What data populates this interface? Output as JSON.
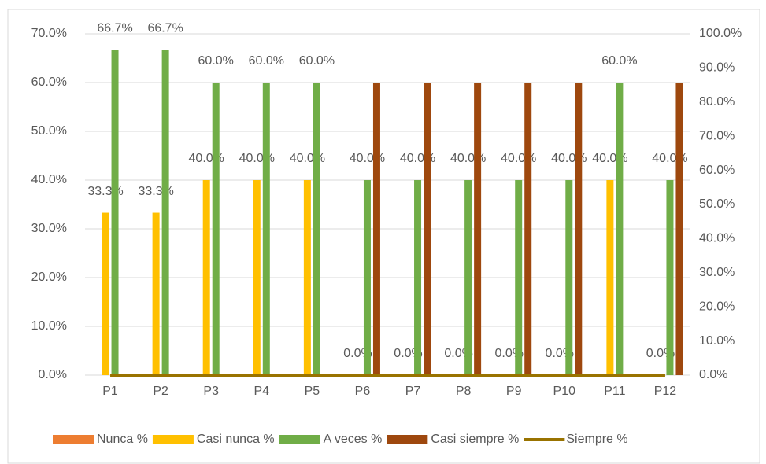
{
  "chart_data": {
    "type": "bar",
    "categories": [
      "P1",
      "P2",
      "P3",
      "P4",
      "P5",
      "P6",
      "P7",
      "P8",
      "P9",
      "P10",
      "P11",
      "P12"
    ],
    "series": [
      {
        "name": "Nunca %",
        "color": "#ED7D31",
        "values": [
          0,
          0,
          0,
          0,
          0,
          0,
          0,
          0,
          0,
          0,
          0,
          0
        ]
      },
      {
        "name": "Casi nunca %",
        "color": "#FFC000",
        "values": [
          33.3,
          33.3,
          40,
          40,
          40,
          0,
          0,
          0,
          0,
          0,
          40,
          0
        ],
        "value_labels": [
          "33.3%",
          "33.3%",
          "40.0%",
          "40.0%",
          "40.0%",
          "0.0%",
          "0.0%",
          "0.0%",
          "0.0%",
          "0.0%",
          "40.0%",
          "0.0%"
        ]
      },
      {
        "name": "A veces %",
        "color": "#70AD47",
        "values": [
          66.7,
          66.7,
          60,
          60,
          60,
          40,
          40,
          40,
          40,
          40,
          60,
          40
        ],
        "value_labels": [
          "66.7%",
          "66.7%",
          "60.0%",
          "60.0%",
          "60.0%",
          "40.0%",
          "40.0%",
          "40.0%",
          "40.0%",
          "40.0%",
          "60.0%",
          "40.0%"
        ]
      },
      {
        "name": "Casi siempre %",
        "color": "#9E480E",
        "values": [
          0,
          0,
          0,
          0,
          0,
          60,
          60,
          60,
          60,
          60,
          0,
          60
        ]
      },
      {
        "name": "Siempre %",
        "color": "#997300",
        "type": "line",
        "axis": "y2",
        "values": [
          0,
          0,
          0,
          0,
          0,
          0,
          0,
          0,
          0,
          0,
          0,
          0
        ]
      }
    ],
    "ylim": [
      0,
      70
    ],
    "yticks": [
      {
        "value": 0,
        "label": "0.0%"
      },
      {
        "value": 10,
        "label": "10.0%"
      },
      {
        "value": 20,
        "label": "20.0%"
      },
      {
        "value": 30,
        "label": "30.0%"
      },
      {
        "value": 40,
        "label": "40.0%"
      },
      {
        "value": 50,
        "label": "50.0%"
      },
      {
        "value": 60,
        "label": "60.0%"
      },
      {
        "value": 70,
        "label": "70.0%"
      }
    ],
    "y2lim": [
      0,
      100
    ],
    "y2ticks": [
      {
        "value": 0,
        "label": "0.0%"
      },
      {
        "value": 10,
        "label": "10.0%"
      },
      {
        "value": 20,
        "label": "20.0%"
      },
      {
        "value": 30,
        "label": "30.0%"
      },
      {
        "value": 40,
        "label": "40.0%"
      },
      {
        "value": 50,
        "label": "50.0%"
      },
      {
        "value": 60,
        "label": "60.0%"
      },
      {
        "value": 70,
        "label": "70.0%"
      },
      {
        "value": 80,
        "label": "80.0%"
      },
      {
        "value": 90,
        "label": "90.0%"
      },
      {
        "value": 100,
        "label": "100.0%"
      }
    ],
    "grid": true,
    "legend": "bottom"
  }
}
